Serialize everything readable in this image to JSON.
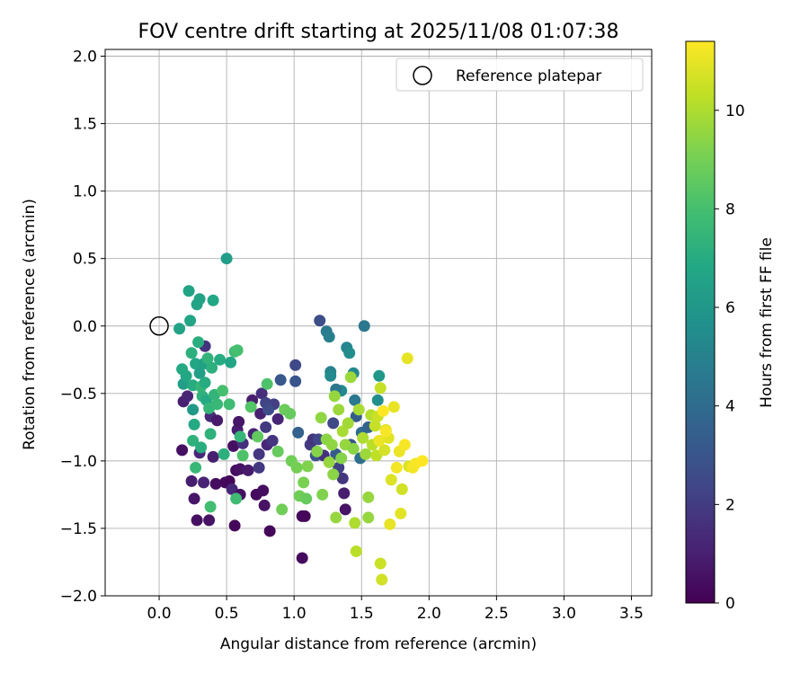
{
  "chart_data": {
    "type": "scatter",
    "title": "FOV centre drift starting at 2025/11/08 01:07:38",
    "xlabel": "Angular distance from reference (arcmin)",
    "ylabel": "Rotation from reference (arcmin)",
    "xlim": [
      -0.4,
      3.65
    ],
    "ylim": [
      -2.0,
      2.05
    ],
    "xticks": [
      "0.0",
      "0.5",
      "1.0",
      "1.5",
      "2.0",
      "2.5",
      "3.0",
      "3.5"
    ],
    "yticks": [
      "2.0",
      "1.5",
      "1.0",
      "0.5",
      "0.0",
      "-0.5",
      "-1.0",
      "-1.5",
      "-2.0"
    ],
    "grid": true,
    "legend": {
      "label": "Reference platepar",
      "position": "top-right"
    },
    "reference_point": {
      "x": 0.0,
      "y": 0.0
    },
    "colorbar": {
      "label": "Hours from first FF file",
      "range": [
        0,
        11.4
      ],
      "ticks": [
        "0",
        "2",
        "4",
        "6",
        "8",
        "10"
      ],
      "colormap": "viridis"
    },
    "points": [
      [
        0.17,
        -0.92,
        0.5
      ],
      [
        0.18,
        -0.56,
        1.0
      ],
      [
        0.21,
        -0.52,
        1.2
      ],
      [
        0.24,
        -1.15,
        0.9
      ],
      [
        0.26,
        -1.28,
        0.7
      ],
      [
        0.28,
        -1.44,
        0.5
      ],
      [
        0.3,
        -0.94,
        1.3
      ],
      [
        0.33,
        -1.16,
        1.1
      ],
      [
        0.37,
        -1.44,
        0.6
      ],
      [
        0.34,
        -0.15,
        1.6
      ],
      [
        0.38,
        -0.67,
        1.4
      ],
      [
        0.4,
        -0.97,
        1.0
      ],
      [
        0.42,
        -1.17,
        0.4
      ],
      [
        0.43,
        -0.7,
        0.8
      ],
      [
        0.49,
        -1.16,
        0.3
      ],
      [
        0.52,
        -1.15,
        0.2
      ],
      [
        0.54,
        -1.21,
        1.3
      ],
      [
        0.55,
        -0.89,
        0.5
      ],
      [
        0.56,
        -1.48,
        0.2
      ],
      [
        0.57,
        -1.07,
        0.4
      ],
      [
        0.58,
        -0.77,
        0.9
      ],
      [
        0.59,
        -0.71,
        0.7
      ],
      [
        0.6,
        -1.25,
        0.5
      ],
      [
        0.6,
        -1.06,
        0.6
      ],
      [
        0.62,
        -0.87,
        1.6
      ],
      [
        0.66,
        -1.07,
        0.8
      ],
      [
        0.69,
        -0.55,
        0.9
      ],
      [
        0.7,
        -0.8,
        1.1
      ],
      [
        0.72,
        -1.25,
        0.3
      ],
      [
        0.74,
        -0.95,
        1.8
      ],
      [
        0.75,
        -0.65,
        1.0
      ],
      [
        0.76,
        -0.5,
        1.5
      ],
      [
        0.77,
        -1.22,
        0.4
      ],
      [
        0.78,
        -1.33,
        0.6
      ],
      [
        0.79,
        -0.75,
        1.9
      ],
      [
        0.8,
        -0.88,
        1.3
      ],
      [
        0.82,
        -1.52,
        0.2
      ],
      [
        0.84,
        -0.85,
        1.7
      ],
      [
        0.85,
        -0.58,
        2.1
      ],
      [
        0.88,
        -0.69,
        1.2
      ],
      [
        0.74,
        -1.05,
        1.9
      ],
      [
        0.79,
        -0.57,
        2.3
      ],
      [
        0.81,
        -0.62,
        2.6
      ],
      [
        0.9,
        -0.4,
        3.1
      ],
      [
        1.01,
        -0.29,
        2.5
      ],
      [
        1.01,
        -0.41,
        3.0
      ],
      [
        1.03,
        -0.79,
        3.5
      ],
      [
        1.06,
        -1.41,
        0.2
      ],
      [
        1.06,
        -1.72,
        0.3
      ],
      [
        1.08,
        -1.41,
        0.2
      ],
      [
        1.12,
        -0.88,
        2.0
      ],
      [
        1.14,
        -0.84,
        1.7
      ],
      [
        1.16,
        -0.96,
        3.0
      ],
      [
        1.18,
        -0.84,
        2.4
      ],
      [
        1.19,
        0.04,
        2.7
      ],
      [
        1.22,
        -0.96,
        1.6
      ],
      [
        1.24,
        -0.04,
        4.6
      ],
      [
        1.26,
        -0.08,
        4.9
      ],
      [
        1.27,
        -0.34,
        5.0
      ],
      [
        1.27,
        -0.37,
        5.4
      ],
      [
        1.29,
        -0.72,
        2.5
      ],
      [
        1.31,
        -0.95,
        3.2
      ],
      [
        1.33,
        -1.05,
        2.2
      ],
      [
        1.35,
        -0.48,
        5.4
      ],
      [
        1.36,
        -1.13,
        1.8
      ],
      [
        1.37,
        -1.24,
        0.9
      ],
      [
        1.38,
        -1.36,
        0.6
      ],
      [
        1.39,
        -0.16,
        5.2
      ],
      [
        1.41,
        -0.2,
        5.5
      ],
      [
        1.42,
        -0.88,
        2.9
      ],
      [
        1.44,
        -0.35,
        5.3
      ],
      [
        1.45,
        -0.55,
        4.6
      ],
      [
        1.46,
        -0.67,
        3.3
      ],
      [
        1.49,
        -0.98,
        4.1
      ],
      [
        1.5,
        -0.79,
        4.0
      ],
      [
        1.52,
        0.0,
        4.5
      ],
      [
        1.55,
        -0.75,
        3.6
      ],
      [
        1.62,
        -0.55,
        5.6
      ],
      [
        1.63,
        -0.37,
        6.0
      ],
      [
        1.31,
        -0.47,
        4.5
      ],
      [
        0.15,
        -0.02,
        6.6
      ],
      [
        0.17,
        -0.32,
        6.9
      ],
      [
        0.18,
        -0.43,
        6.3
      ],
      [
        0.2,
        -0.37,
        6.8
      ],
      [
        0.22,
        0.26,
        6.6
      ],
      [
        0.23,
        0.04,
        6.7
      ],
      [
        0.24,
        -0.2,
        7.2
      ],
      [
        0.25,
        -0.44,
        7.0
      ],
      [
        0.25,
        -0.62,
        6.1
      ],
      [
        0.26,
        -0.73,
        6.9
      ],
      [
        0.27,
        -0.28,
        6.8
      ],
      [
        0.28,
        0.16,
        6.6
      ],
      [
        0.29,
        -0.12,
        7.1
      ],
      [
        0.3,
        0.2,
        6.6
      ],
      [
        0.3,
        -0.35,
        6.4
      ],
      [
        0.31,
        -0.45,
        7.5
      ],
      [
        0.32,
        -0.52,
        7.3
      ],
      [
        0.33,
        -0.28,
        6.5
      ],
      [
        0.34,
        -0.42,
        7.0
      ],
      [
        0.35,
        -0.55,
        6.9
      ],
      [
        0.36,
        -0.24,
        7.4
      ],
      [
        0.37,
        -0.61,
        7.5
      ],
      [
        0.38,
        -0.8,
        7.3
      ],
      [
        0.39,
        -0.31,
        7.2
      ],
      [
        0.4,
        0.19,
        6.8
      ],
      [
        0.41,
        -0.51,
        7.4
      ],
      [
        0.43,
        -0.58,
        7.6
      ],
      [
        0.45,
        -0.25,
        7.0
      ],
      [
        0.47,
        -0.48,
        8.0
      ],
      [
        0.48,
        -0.95,
        7.2
      ],
      [
        0.5,
        0.5,
        6.3
      ],
      [
        0.52,
        -0.58,
        7.8
      ],
      [
        0.53,
        -0.27,
        6.7
      ],
      [
        0.56,
        -0.19,
        7.8
      ],
      [
        0.57,
        -1.28,
        7.8
      ],
      [
        0.58,
        -0.18,
        8.0
      ],
      [
        0.6,
        -0.82,
        7.5
      ],
      [
        0.62,
        -0.96,
        8.2
      ],
      [
        0.68,
        -0.6,
        8.3
      ],
      [
        0.73,
        -0.82,
        8.6
      ],
      [
        0.8,
        -0.43,
        8.2
      ],
      [
        0.88,
        -0.93,
        8.7
      ],
      [
        0.93,
        -0.62,
        8.8
      ],
      [
        0.97,
        -0.65,
        8.7
      ],
      [
        0.98,
        -1.0,
        8.9
      ],
      [
        1.02,
        -1.05,
        9.0
      ],
      [
        1.04,
        -1.26,
        8.9
      ],
      [
        1.07,
        -1.16,
        9.1
      ],
      [
        1.09,
        -1.28,
        8.7
      ],
      [
        1.1,
        -1.04,
        9.2
      ],
      [
        0.91,
        -1.36,
        8.9
      ],
      [
        0.27,
        -1.05,
        7.6
      ],
      [
        0.38,
        -1.34,
        7.9
      ],
      [
        0.25,
        -0.85,
        7.3
      ],
      [
        0.31,
        -0.9,
        7.1
      ],
      [
        1.17,
        -0.93,
        9.3
      ],
      [
        1.2,
        -0.68,
        9.5
      ],
      [
        1.21,
        -1.25,
        9.2
      ],
      [
        1.24,
        -0.84,
        9.4
      ],
      [
        1.26,
        -1.01,
        9.6
      ],
      [
        1.28,
        -0.88,
        9.5
      ],
      [
        1.29,
        -1.1,
        9.4
      ],
      [
        1.3,
        -0.52,
        9.6
      ],
      [
        1.31,
        -1.42,
        9.6
      ],
      [
        1.33,
        -0.62,
        9.7
      ],
      [
        1.35,
        -0.98,
        9.3
      ],
      [
        1.36,
        -0.78,
        9.9
      ],
      [
        1.38,
        -0.88,
        9.6
      ],
      [
        1.4,
        -0.72,
        9.8
      ],
      [
        1.42,
        -0.38,
        9.7
      ],
      [
        1.44,
        -0.91,
        9.4
      ],
      [
        1.45,
        -1.46,
        10.0
      ],
      [
        1.46,
        -1.67,
        10.2
      ],
      [
        1.48,
        -0.62,
        9.9
      ],
      [
        1.51,
        -0.83,
        10.0
      ],
      [
        1.53,
        -0.95,
        9.7
      ],
      [
        1.55,
        -1.42,
        9.6
      ],
      [
        1.55,
        -1.27,
        9.6
      ],
      [
        1.57,
        -0.66,
        10.1
      ],
      [
        1.58,
        -0.88,
        10.2
      ],
      [
        1.6,
        -0.74,
        10.4
      ],
      [
        1.61,
        -0.96,
        10.3
      ],
      [
        1.62,
        -0.67,
        10.5
      ],
      [
        1.64,
        -0.46,
        10.4
      ],
      [
        1.64,
        -1.76,
        10.5
      ],
      [
        1.65,
        -1.88,
        10.6
      ],
      [
        1.67,
        -0.92,
        10.7
      ],
      [
        1.68,
        -0.77,
        10.8
      ],
      [
        1.7,
        -0.83,
        10.9
      ],
      [
        1.71,
        -1.47,
        11.0
      ],
      [
        1.72,
        -1.14,
        10.8
      ],
      [
        1.74,
        -0.6,
        11.0
      ],
      [
        1.76,
        -1.05,
        11.2
      ],
      [
        1.78,
        -0.93,
        11.1
      ],
      [
        1.79,
        -1.39,
        10.9
      ],
      [
        1.8,
        -1.21,
        10.6
      ],
      [
        1.82,
        -0.88,
        11.3
      ],
      [
        1.84,
        -0.24,
        11.0
      ],
      [
        1.85,
        -1.04,
        10.8
      ],
      [
        1.88,
        -1.05,
        11.2
      ],
      [
        1.9,
        -1.02,
        11.3
      ],
      [
        1.95,
        -1.0,
        11.4
      ],
      [
        1.68,
        -0.78,
        11.3
      ],
      [
        1.66,
        -0.63,
        11.4
      ],
      [
        1.63,
        -0.85,
        11.1
      ]
    ]
  }
}
